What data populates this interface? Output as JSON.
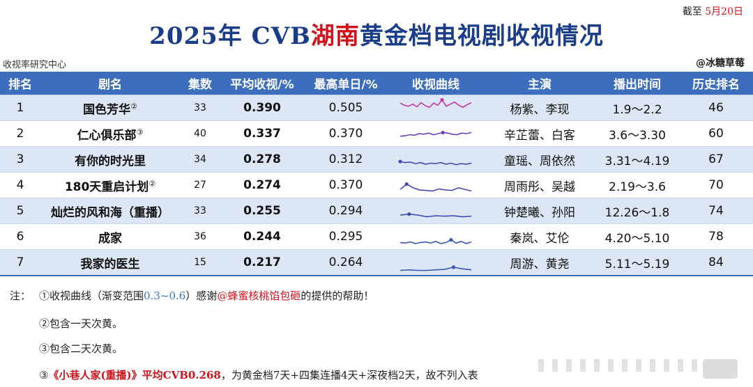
{
  "date": {
    "prefix": "截至",
    "value": "5月20日"
  },
  "title": {
    "before": "2025年 CVB",
    "highlight": "湖南",
    "after": "黄金档电视剧收视情况"
  },
  "source_left": "收视率研究中心",
  "source_right": "@冰糖草莓",
  "table": {
    "headers": [
      "排名",
      "剧名",
      "集数",
      "平均收视/%",
      "最高单日/%",
      "收视曲线",
      "主演",
      "播出时间",
      "历史排名"
    ],
    "rows": [
      {
        "rank": "1",
        "name": "国色芳华",
        "mark": "②",
        "eps": "33",
        "avg": "0.390",
        "peak": "0.505",
        "cast": "杨紫、李现",
        "period": "1.9～2.2",
        "hist": "46",
        "curve": [
          0.44,
          0.4,
          0.38,
          0.42,
          0.37,
          0.45,
          0.39,
          0.36,
          0.44,
          0.4,
          0.5,
          0.38,
          0.42,
          0.46,
          0.4,
          0.36,
          0.41,
          0.45
        ],
        "curve_color": "#c03aa6"
      },
      {
        "rank": "2",
        "name": "仁心俱乐部",
        "mark": "③",
        "eps": "40",
        "avg": "0.337",
        "peak": "0.370",
        "cast": "辛芷蕾、白客",
        "period": "3.6～3.30",
        "hist": "60",
        "curve": [
          0.3,
          0.31,
          0.33,
          0.32,
          0.35,
          0.34,
          0.36,
          0.33,
          0.35,
          0.37,
          0.36,
          0.34,
          0.33,
          0.36,
          0.35,
          0.37
        ],
        "curve_color": "#6d3fb8"
      },
      {
        "rank": "3",
        "name": "有你的时光里",
        "mark": "",
        "eps": "34",
        "avg": "0.278",
        "peak": "0.312",
        "cast": "童瑶、周依然",
        "period": "3.31～4.19",
        "hist": "67",
        "curve": [
          0.31,
          0.29,
          0.3,
          0.27,
          0.29,
          0.26,
          0.28,
          0.27,
          0.29,
          0.26,
          0.28,
          0.25,
          0.27,
          0.26,
          0.28
        ],
        "curve_color": "#4548b0"
      },
      {
        "rank": "4",
        "name": "180天重启计划",
        "mark": "②",
        "eps": "27",
        "avg": "0.274",
        "peak": "0.370",
        "cast": "周雨彤、吴越",
        "period": "2.19～3.6",
        "hist": "70",
        "curve": [
          0.27,
          0.37,
          0.3,
          0.26,
          0.25,
          0.24,
          0.28,
          0.26,
          0.25,
          0.3,
          0.27,
          0.24
        ],
        "curve_color": "#4548b0"
      },
      {
        "rank": "5",
        "name": "灿烂的风和海（重播）",
        "mark": "",
        "eps": "33",
        "avg": "0.255",
        "peak": "0.294",
        "cast": "钟楚曦、孙阳",
        "period": "12.26～1.8",
        "hist": "74",
        "curve": [
          0.27,
          0.29,
          0.27,
          0.24,
          0.26,
          0.25,
          0.26,
          0.24,
          0.25
        ],
        "curve_color": "#3e4fb3"
      },
      {
        "rank": "6",
        "name": "成家",
        "mark": "",
        "eps": "36",
        "avg": "0.244",
        "peak": "0.295",
        "cast": "秦岚、艾伦",
        "period": "4.20～5.10",
        "hist": "78",
        "curve": [
          0.24,
          0.23,
          0.25,
          0.22,
          0.24,
          0.25,
          0.23,
          0.26,
          0.22,
          0.24,
          0.29,
          0.23,
          0.26,
          0.22,
          0.25
        ],
        "curve_color": "#3a56b5"
      },
      {
        "rank": "7",
        "name": "我家的医生",
        "mark": "",
        "eps": "15",
        "avg": "0.217",
        "peak": "0.264",
        "cast": "周游、黄尧",
        "period": "5.11～5.19",
        "hist": "84",
        "curve": [
          0.2,
          0.21,
          0.2,
          0.2,
          0.21,
          0.22,
          0.26,
          0.23,
          0.21
        ],
        "curve_color": "#3a56b5"
      }
    ]
  },
  "notes": {
    "label": "注：",
    "n1": {
      "a": "①收视曲线（渐变范围",
      "range": "0.3~0.6",
      "b": "）感谢",
      "thanks": "@蜂蜜核桃馅包砸",
      "c": "的提供的帮助！"
    },
    "n2": "②包含一天次黄。",
    "n3": "③包含二天次黄。",
    "n4": {
      "circle": "③",
      "title": "《小巷人家(重播)》平均CVB0.268",
      "rest": "，为黄金档7天+四集连播4天+深夜档2天，故不列入表"
    }
  }
}
